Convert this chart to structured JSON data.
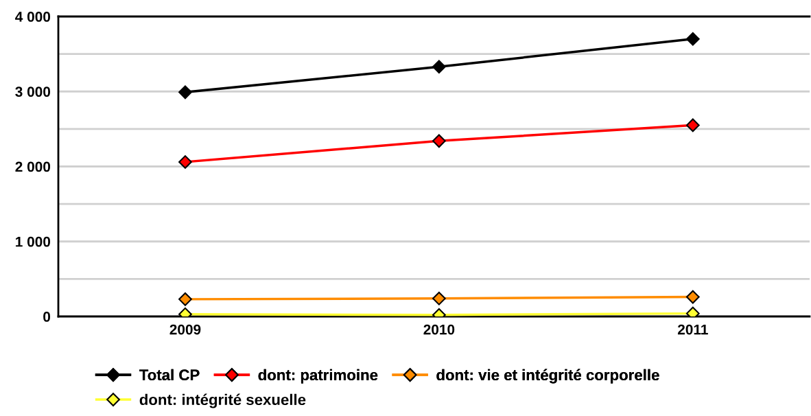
{
  "chart_data": {
    "type": "line",
    "categories": [
      "2009",
      "2010",
      "2011"
    ],
    "series": [
      {
        "name": "Total CP",
        "color": "#000000",
        "values": [
          2990,
          3330,
          3700
        ]
      },
      {
        "name": "dont: patrimoine",
        "color": "#ff0000",
        "values": [
          2060,
          2340,
          2550
        ]
      },
      {
        "name": "dont: vie et intégrité corporelle",
        "color": "#ff8c00",
        "values": [
          230,
          240,
          260
        ]
      },
      {
        "name": "dont: intégrité sexuelle",
        "color": "#ffff33",
        "values": [
          30,
          20,
          40
        ]
      }
    ],
    "ylim": [
      0,
      4000
    ],
    "yticks": [
      {
        "value": 0,
        "label": "0"
      },
      {
        "value": 500,
        "label": null
      },
      {
        "value": 1000,
        "label": "1 000"
      },
      {
        "value": 1500,
        "label": null
      },
      {
        "value": 2000,
        "label": "2 000"
      },
      {
        "value": 2500,
        "label": null
      },
      {
        "value": 3000,
        "label": "3 000"
      },
      {
        "value": 3500,
        "label": null
      },
      {
        "value": 4000,
        "label": "4 000"
      }
    ],
    "grid": "y",
    "legend": "bottom",
    "marker": "diamond",
    "line_style": "solid"
  }
}
